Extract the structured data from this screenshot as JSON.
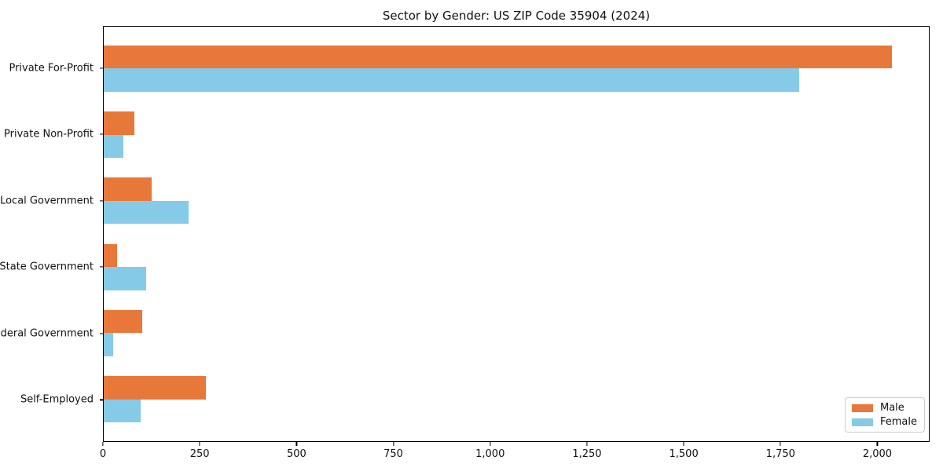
{
  "chart_data": {
    "type": "bar",
    "orientation": "horizontal",
    "title": "Sector by Gender: US ZIP Code 35904 (2024)",
    "categories": [
      "Private For-Profit",
      "Private Non-Profit",
      "Local Government",
      "State Government",
      "Federal Government",
      "Self-Employed"
    ],
    "series": [
      {
        "name": "Male",
        "color": "#E8783A",
        "values": [
          2040,
          80,
          125,
          35,
          100,
          265
        ]
      },
      {
        "name": "Female",
        "color": "#85CBE8",
        "values": [
          1800,
          50,
          220,
          110,
          25,
          95
        ]
      }
    ],
    "xlabel": "",
    "ylabel": "",
    "xlim": [
      0,
      2135
    ],
    "x_ticks": [
      0,
      250,
      500,
      750,
      1000,
      1250,
      1500,
      1750,
      2000
    ],
    "x_tick_labels": [
      "0",
      "250",
      "500",
      "750",
      "1,000",
      "1,250",
      "1,500",
      "1,750",
      "2,000"
    ],
    "legend_position": "lower right",
    "grid": false,
    "frame_color": "#000000",
    "background_color": "#ffffff"
  }
}
